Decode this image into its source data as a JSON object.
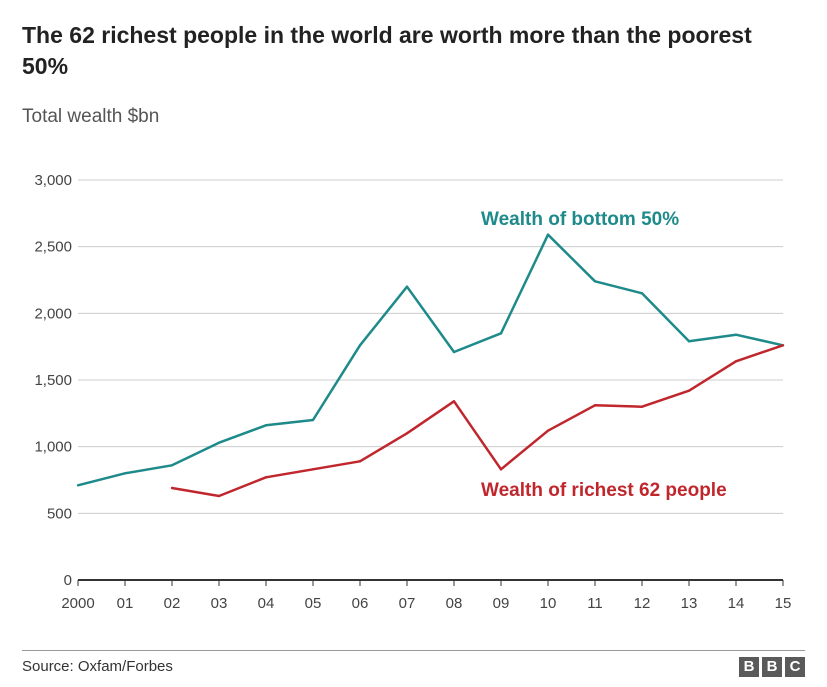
{
  "title": "The 62 richest people in the world are worth more than the poorest 50%",
  "subtitle": "Total wealth $bn",
  "source": "Source: Oxfam/Forbes",
  "logo": [
    "B",
    "B",
    "C"
  ],
  "colors": {
    "bottom50": "#1f8a8a",
    "richest62": "#c0272d",
    "grid": "#cccccc",
    "axis": "#333333"
  },
  "chart_data": {
    "type": "line",
    "x": [
      "2000",
      "01",
      "02",
      "03",
      "04",
      "05",
      "06",
      "07",
      "08",
      "09",
      "10",
      "11",
      "12",
      "13",
      "14",
      "15"
    ],
    "ylim": [
      0,
      3000
    ],
    "yticks": [
      0,
      500,
      1000,
      1500,
      2000,
      2500,
      3000
    ],
    "ytick_labels": [
      "0",
      "500",
      "1,000",
      "1,500",
      "2,000",
      "2,500",
      "3,000"
    ],
    "grid": true,
    "series": [
      {
        "name": "Wealth of bottom 50%",
        "color": "#1f8a8a",
        "values": [
          710,
          800,
          860,
          1030,
          1160,
          1200,
          1760,
          2200,
          1710,
          1850,
          2590,
          2240,
          2150,
          1790,
          1840,
          1760
        ]
      },
      {
        "name": "Wealth of richest 62 people",
        "color": "#c0272d",
        "values": [
          null,
          null,
          690,
          630,
          770,
          830,
          890,
          1100,
          1340,
          830,
          1120,
          1310,
          1300,
          1420,
          1640,
          1760
        ]
      }
    ]
  }
}
